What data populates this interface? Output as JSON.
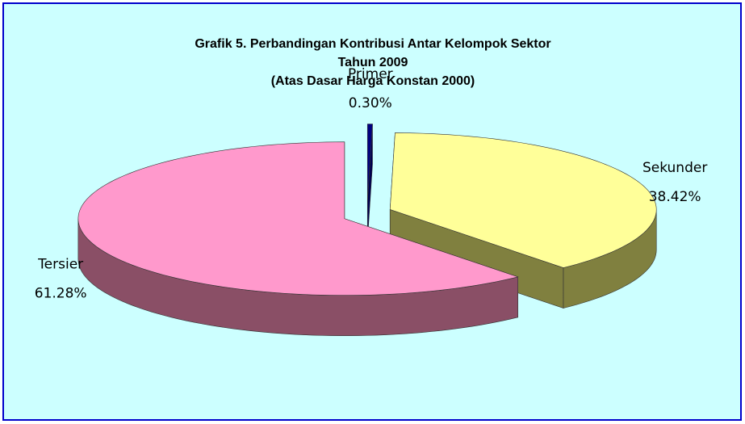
{
  "chart_data": {
    "type": "pie3d",
    "title": [
      "Grafik 5. Perbandingan Kontribusi Antar Kelompok Sektor",
      "Tahun  2009",
      "(Atas Dasar Harga Konstan 2000)"
    ],
    "categories": [
      "Primer",
      "Sekunder",
      "Tersier"
    ],
    "values": [
      0.3,
      38.42,
      61.28
    ],
    "value_labels": [
      "0.30%",
      "38.42%",
      "61.28%"
    ],
    "colors": [
      "#000080",
      "#ffff99",
      "#ff99cc"
    ],
    "side_colors": [
      "#000050",
      "#80803f",
      "#8a4f66"
    ]
  }
}
